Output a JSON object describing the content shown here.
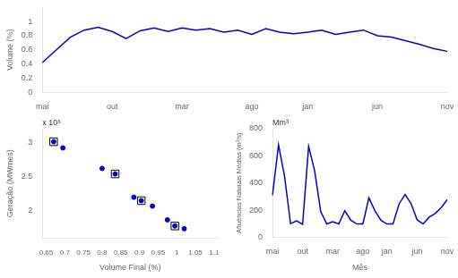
{
  "chart_data": [
    {
      "type": "line",
      "categories": [
        "mai",
        null,
        null,
        null,
        null,
        "out",
        null,
        null,
        null,
        null,
        "mar",
        null,
        null,
        null,
        null,
        "ago",
        null,
        null,
        null,
        "jan",
        null,
        null,
        null,
        null,
        "jun",
        null,
        null,
        null,
        null,
        "nov"
      ],
      "values": [
        0.42,
        0.6,
        0.78,
        0.88,
        0.92,
        0.86,
        0.76,
        0.87,
        0.91,
        0.86,
        0.91,
        0.88,
        0.9,
        0.85,
        0.88,
        0.82,
        0.9,
        0.85,
        0.83,
        0.85,
        0.88,
        0.82,
        0.85,
        0.88,
        0.8,
        0.78,
        0.73,
        0.68,
        0.62,
        0.58
      ],
      "color": "#0000cc",
      "ylabel": "Volume (%)",
      "ylim": [
        0,
        1.2
      ],
      "yticks": [
        0,
        0.2,
        0.4,
        0.6,
        0.8,
        1
      ],
      "grid": false
    },
    {
      "type": "scatter",
      "xlabel": "Volume Final (%)",
      "ylabel": "Geração (MWmes)",
      "annotation": "x 10⁵",
      "series": [
        {
          "color": "#0000cc",
          "marker": "circle",
          "x": [
            0.67,
            0.695,
            0.8,
            0.835,
            0.885,
            0.905,
            0.935,
            0.975,
            0.995,
            1.02
          ],
          "values": [
            3.01,
            2.92,
            2.62,
            2.54,
            2.2,
            2.15,
            2.07,
            1.87,
            1.78,
            1.74
          ]
        },
        {
          "color": "#000000",
          "marker": "square",
          "x": [
            0.67,
            0.835,
            0.905,
            0.995
          ],
          "values": [
            3.01,
            2.54,
            2.15,
            1.78
          ]
        }
      ],
      "xlim": [
        0.64,
        1.11
      ],
      "xticks": [
        0.65,
        0.7,
        0.75,
        0.8,
        0.85,
        0.9,
        0.95,
        1,
        1.05,
        1.1
      ],
      "ylim": [
        1.6,
        3.2
      ],
      "yticks": [
        2,
        2.5,
        3
      ],
      "grid": false
    },
    {
      "type": "line",
      "categories": [
        "mai",
        null,
        null,
        null,
        null,
        "out",
        null,
        null,
        null,
        null,
        "mar",
        null,
        null,
        null,
        null,
        "ago",
        null,
        null,
        null,
        "jan",
        null,
        null,
        null,
        null,
        "jun",
        null,
        null,
        null,
        null,
        "nov"
      ],
      "values": [
        310,
        680,
        450,
        100,
        120,
        95,
        670,
        490,
        190,
        98,
        115,
        98,
        195,
        125,
        98,
        98,
        290,
        195,
        125,
        98,
        98,
        245,
        315,
        248,
        128,
        98,
        148,
        175,
        218,
        278
      ],
      "color": "#0000cc",
      "xlabel": "Mês",
      "ylabel": "Afluências Naturais Médias (m³/s)",
      "annotation": "Mm³",
      "ylim": [
        0,
        800
      ],
      "yticks": [
        0,
        200,
        400,
        600,
        800
      ],
      "grid": false
    }
  ]
}
